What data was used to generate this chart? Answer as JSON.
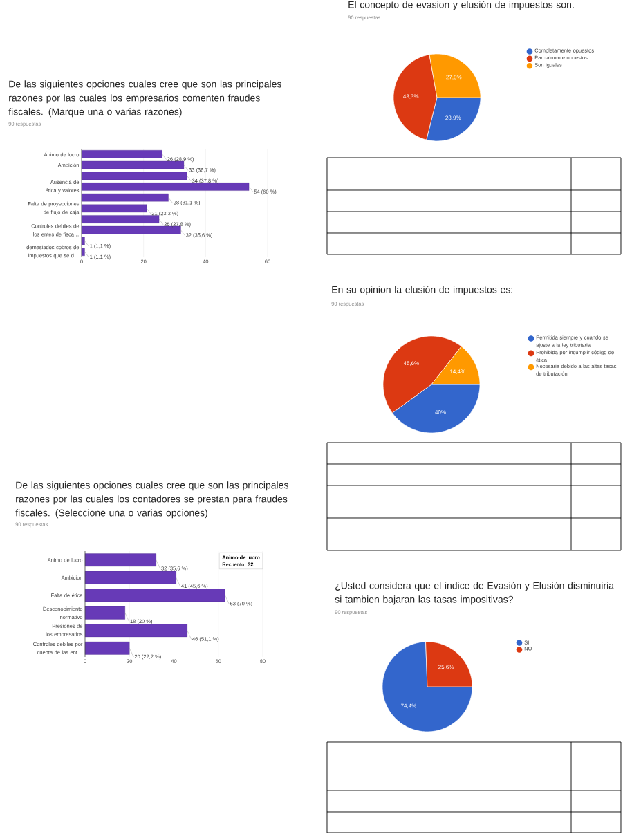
{
  "chart_data": [
    {
      "type": "bar",
      "orientation": "horizontal",
      "title": "De las siguientes opciones cuales cree que son las principales razones por las cuales los empresarios comenten fraudes fiscales. (Marque una o varias razones)",
      "subtitle": "90 respuestas",
      "categories": [
        "Ánimo de lucro",
        "Ambición",
        null,
        "Ausencia de ética y valores",
        null,
        "Falta de proyecciones de flujo de caja",
        null,
        "Controles debiles de los entes de fisca…",
        null,
        "demasiados cobros de impuestos que se d…"
      ],
      "values": [
        26,
        33,
        34,
        54,
        28,
        21,
        25,
        32,
        1,
        1
      ],
      "value_labels": [
        "26 (28,9 %)",
        "33 (36,7 %)",
        "34 (37,8 %)",
        "54 (60 %)",
        "28 (31,1 %)",
        "21 (23,3 %)",
        "25 (27,8 %)",
        "32 (35,6 %)",
        "1 (1,1 %)",
        "1 (1,1 %)"
      ],
      "color": "#673ab7",
      "xlim": [
        0,
        60
      ],
      "xticks": [
        0,
        20,
        40,
        60
      ],
      "grid": "x"
    },
    {
      "type": "bar",
      "orientation": "horizontal",
      "title": "De las siguientes opciones cuales cree que son las principales razones por las cuales los contadores se prestan para fraudes fiscales. (Seleccione una o varias opciones)",
      "subtitle": "90 respuestas",
      "categories": [
        "Animo de lucro",
        "Ambicion",
        "Falta de ética",
        "Desconocimiento normativo",
        "Presiones de los empresarios",
        "Controles debiles por cuenta de las ent…"
      ],
      "values": [
        32,
        41,
        63,
        18,
        46,
        20
      ],
      "value_labels": [
        "32 (35,6 %)",
        "41 (45,6 %)",
        "63 (70 %)",
        "18 (20 %)",
        "46 (51,1 %)",
        "20 (22,2 %)"
      ],
      "annotations": [
        "**Animo de lucro**",
        "Recuento: **32**"
      ],
      "color": "#673ab7",
      "xlim": [
        0,
        80
      ],
      "xticks": [
        0,
        20,
        40,
        60,
        80
      ],
      "grid": "x"
    },
    {
      "type": "pie",
      "title": "El concepto de evasion y elusión de impuestos son.",
      "subtitle": "90 respuestas",
      "categories": [
        "Completamente opuestos",
        "Parcialmente opuestos",
        "Son iguales"
      ],
      "values": [
        28.9,
        43.3,
        27.8
      ],
      "value_labels": [
        "28,9%",
        "43,3%",
        "27,8%"
      ],
      "colors": [
        "#3366cc",
        "#dc3912",
        "#ff9900"
      ],
      "legend": "right"
    },
    {
      "type": "pie",
      "title": "En su opinion la elusión de impuestos es:",
      "subtitle": "90 respuestas",
      "categories": [
        "Permitida siempre y cuando se ajuste a la ley tributaria",
        "Prohibida por incumplir código de ética",
        "Necesaria debido a las altas tasas de tributación"
      ],
      "values": [
        40,
        45.6,
        14.4
      ],
      "value_labels": [
        "40%",
        "45,6%",
        "14,4%"
      ],
      "colors": [
        "#3366cc",
        "#dc3912",
        "#ff9900"
      ],
      "legend": "right"
    },
    {
      "type": "pie",
      "title": "¿Usted considera que el indice de Evasión y Elusión disminuiria si tambien bajaran las tasas impositivas?",
      "subtitle": "90 respuestas",
      "categories": [
        "SÍ",
        "NO"
      ],
      "values": [
        74.4,
        25.6
      ],
      "value_labels": [
        "74,4%",
        "25,6%"
      ],
      "colors": [
        "#3366cc",
        "#dc3912"
      ],
      "legend": "right"
    }
  ]
}
